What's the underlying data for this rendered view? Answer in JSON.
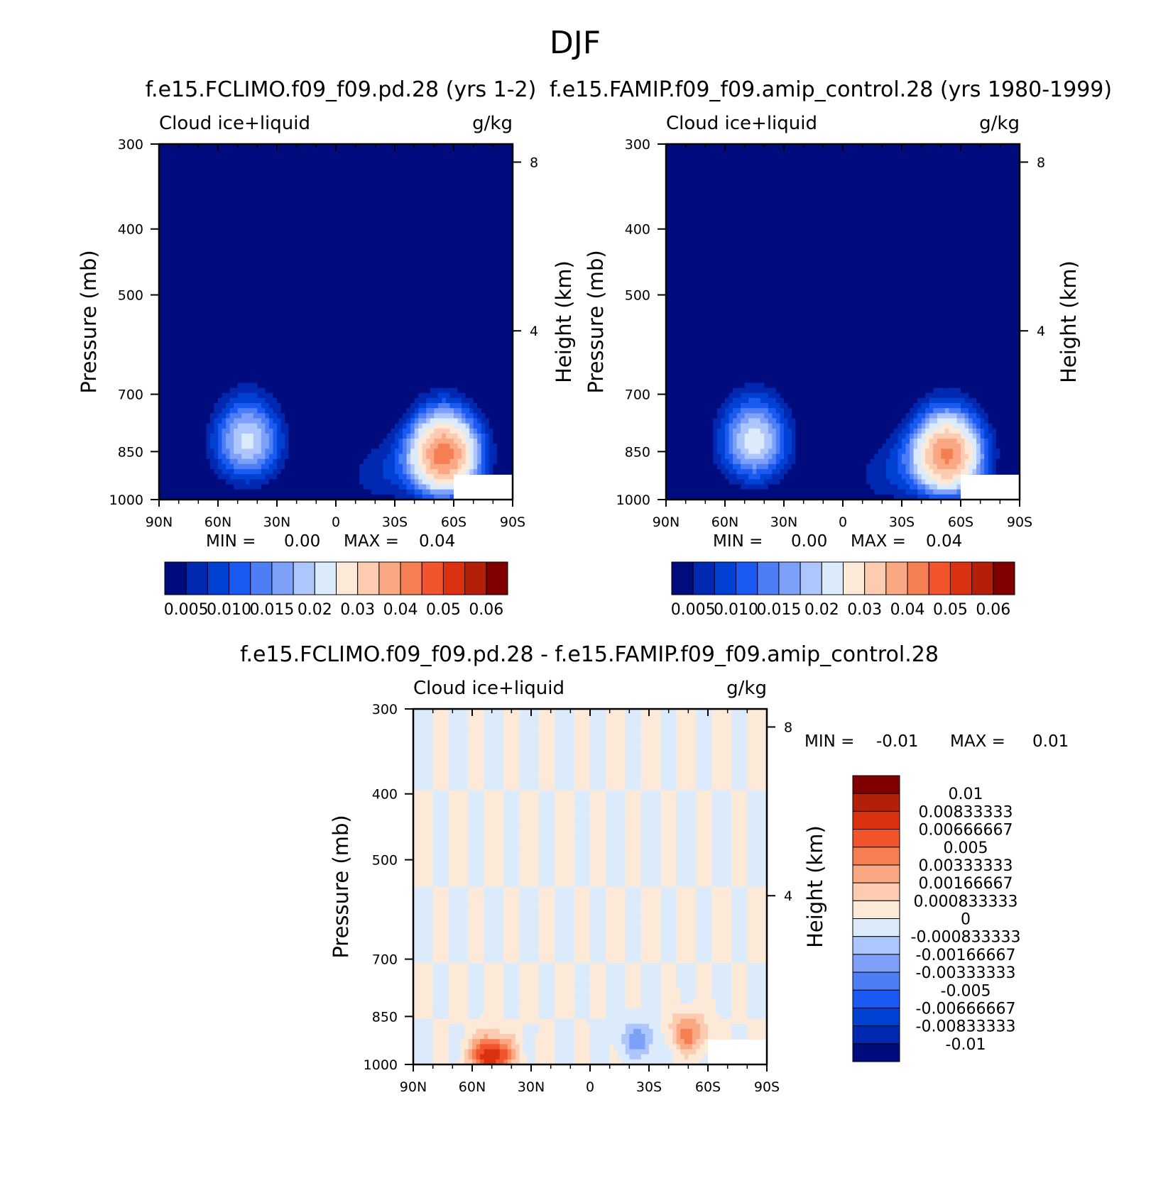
{
  "figure_title": "DJF",
  "chart_data": [
    {
      "type": "heatmap",
      "title": "f.e15.FCLIMO.f09_f09.pd.28 (yrs 1-2)",
      "left_label": "Cloud ice+liquid",
      "right_label": "g/kg",
      "xlabel": "",
      "ylabel": "Pressure (mb)",
      "y2label": "Height (km)",
      "x_ticks": [
        "90N",
        "60N",
        "30N",
        "0",
        "30S",
        "60S",
        "90S"
      ],
      "x_range": [
        90,
        -90
      ],
      "y_ticks": [
        300,
        400,
        500,
        700,
        850,
        1000
      ],
      "y_range": [
        300,
        1000
      ],
      "y_scale": "log",
      "y2_ticks": [
        8,
        4
      ],
      "min_label": "MIN =",
      "min_value": "0.00",
      "max_label": "MAX =",
      "max_value": "0.04",
      "colorbar": {
        "orientation": "horizontal",
        "colors": [
          "#000C7E",
          "#0028B0",
          "#0041D3",
          "#1A5AF2",
          "#4E7EF5",
          "#7DA0F8",
          "#ADC6FC",
          "#DCEBFC",
          "#FDE9D8",
          "#FCCBB0",
          "#F9A883",
          "#F67E53",
          "#F2542C",
          "#DA3110",
          "#B41F0A",
          "#800000"
        ],
        "labels": [
          "0.005",
          "0.010",
          "0.015",
          "0.02",
          "0.03",
          "0.04",
          "0.05",
          "0.06"
        ]
      },
      "features": [
        {
          "lat": 45,
          "p": 820,
          "peak": 0.021
        },
        {
          "lat": -55,
          "p": 860,
          "peak": 0.043
        },
        {
          "lat": -20,
          "p": 920,
          "peak": 0.006
        }
      ]
    },
    {
      "type": "heatmap",
      "title": "f.e15.FAMIP.f09_f09.amip_control.28 (yrs 1980-1999)",
      "left_label": "Cloud ice+liquid",
      "right_label": "g/kg",
      "xlabel": "",
      "ylabel": "Pressure (mb)",
      "y2label": "Height (km)",
      "x_ticks": [
        "90N",
        "60N",
        "30N",
        "0",
        "30S",
        "60S",
        "90S"
      ],
      "x_range": [
        90,
        -90
      ],
      "y_ticks": [
        300,
        400,
        500,
        700,
        850,
        1000
      ],
      "y_range": [
        300,
        1000
      ],
      "y_scale": "log",
      "y2_ticks": [
        8,
        4
      ],
      "min_label": "MIN =",
      "min_value": "0.00",
      "max_label": "MAX =",
      "max_value": "0.04",
      "colorbar": {
        "orientation": "horizontal",
        "colors": [
          "#000C7E",
          "#0028B0",
          "#0041D3",
          "#1A5AF2",
          "#4E7EF5",
          "#7DA0F8",
          "#ADC6FC",
          "#DCEBFC",
          "#FDE9D8",
          "#FCCBB0",
          "#F9A883",
          "#F67E53",
          "#F2542C",
          "#DA3110",
          "#B41F0A",
          "#800000"
        ],
        "labels": [
          "0.005",
          "0.010",
          "0.015",
          "0.02",
          "0.03",
          "0.04",
          "0.05",
          "0.06"
        ]
      },
      "features": [
        {
          "lat": 45,
          "p": 820,
          "peak": 0.022
        },
        {
          "lat": -53,
          "p": 860,
          "peak": 0.041
        },
        {
          "lat": -20,
          "p": 920,
          "peak": 0.006
        }
      ]
    },
    {
      "type": "heatmap",
      "title": "f.e15.FCLIMO.f09_f09.pd.28 - f.e15.FAMIP.f09_f09.amip_control.28",
      "left_label": "Cloud ice+liquid",
      "right_label": "g/kg",
      "xlabel": "",
      "ylabel": "Pressure (mb)",
      "y2label": "Height (km)",
      "x_ticks": [
        "90N",
        "60N",
        "30N",
        "0",
        "30S",
        "60S",
        "90S"
      ],
      "x_range": [
        90,
        -90
      ],
      "y_ticks": [
        300,
        400,
        500,
        700,
        850,
        1000
      ],
      "y_range": [
        300,
        1000
      ],
      "y_scale": "log",
      "y2_ticks": [
        8,
        4
      ],
      "min_label": "MIN =",
      "min_value": "-0.01",
      "max_label": "MAX =",
      "max_value": "0.01",
      "colorbar": {
        "orientation": "vertical",
        "colors": [
          "#000C7E",
          "#0028B0",
          "#0041D3",
          "#1A5AF2",
          "#4E7EF5",
          "#7DA0F8",
          "#ADC6FC",
          "#DCEBFC",
          "#FDE9D8",
          "#FCCBB0",
          "#F9A883",
          "#F67E53",
          "#F2542C",
          "#DA3110",
          "#B41F0A",
          "#800000"
        ],
        "labels": [
          "0.01",
          "0.00833333",
          "0.00666667",
          "0.005",
          "0.00333333",
          "0.00166667",
          "0.000833333",
          "0",
          "-0.000833333",
          "-0.00166667",
          "-0.00333333",
          "-0.005",
          "-0.00666667",
          "-0.00833333",
          "-0.01"
        ]
      },
      "features": [
        {
          "lat": 50,
          "p": 970,
          "peak": 0.008
        },
        {
          "lat": -50,
          "p": 900,
          "peak": 0.004
        },
        {
          "lat": -25,
          "p": 920,
          "peak": -0.003
        }
      ]
    }
  ]
}
